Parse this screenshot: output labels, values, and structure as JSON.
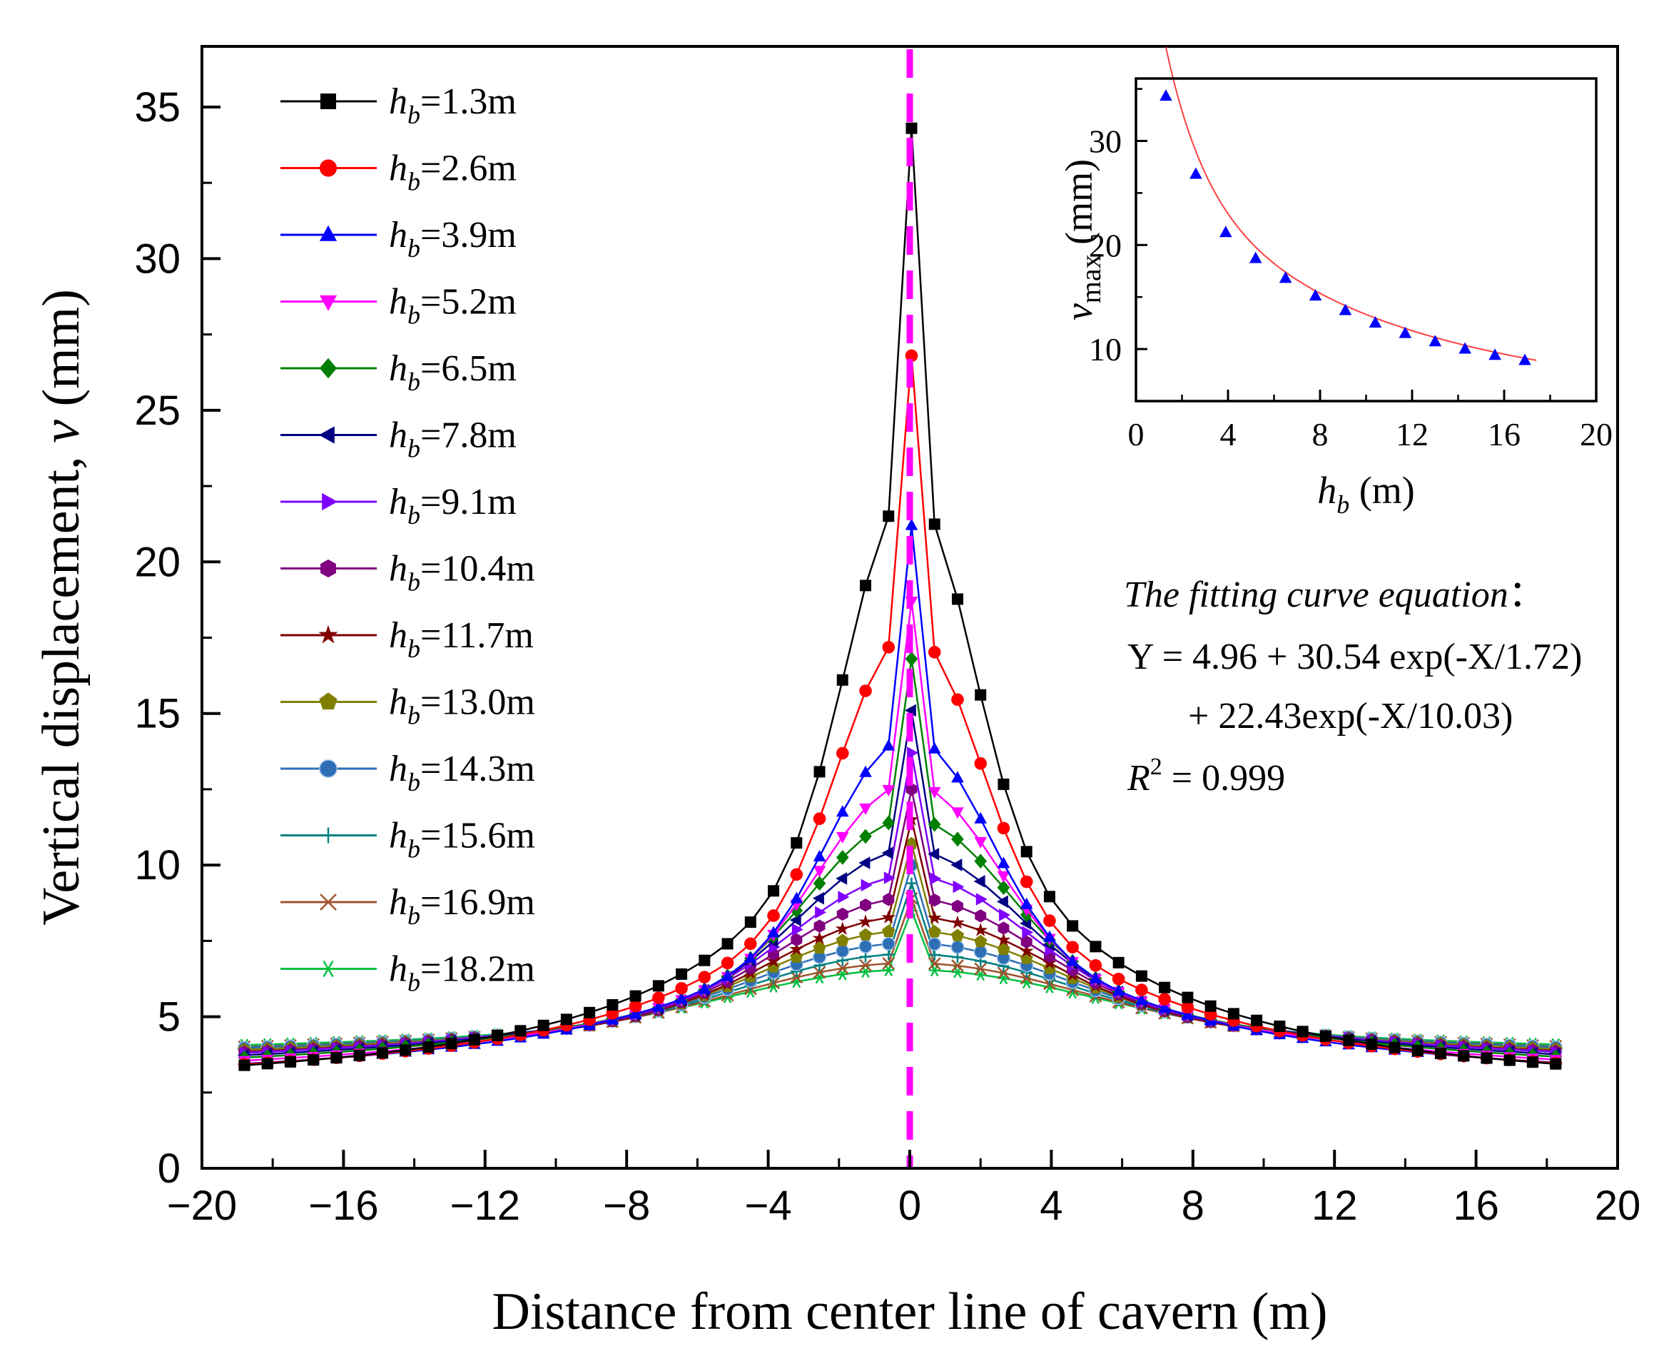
{
  "chart_data": [
    {
      "type": "line",
      "xlabel": "Distance from center line of cavern (m)",
      "ylabel_prefix": "Vertical displacement, ",
      "ylabel_var": "v",
      "ylabel_unit": " (mm)",
      "xlim": [
        -20,
        20
      ],
      "ylim": [
        0,
        37
      ],
      "xticks": [
        -20,
        -16,
        -12,
        -8,
        -4,
        0,
        4,
        8,
        12,
        16,
        20
      ],
      "xtick_labels": [
        "−20",
        "−16",
        "−12",
        "−8",
        "−4",
        "0",
        "4",
        "8",
        "12",
        "16",
        "20"
      ],
      "yticks": [
        0,
        5,
        10,
        15,
        20,
        25,
        30,
        35
      ],
      "ytick_labels": [
        "0",
        "5",
        "10",
        "15",
        "20",
        "25",
        "30",
        "35"
      ],
      "center_line_x": 0,
      "legend_position": "top-left",
      "series": [
        {
          "name": "h_b=1.3m",
          "var": "h",
          "sub": "b",
          "value_label": "=1.3m",
          "hb": 1.3,
          "color": "#000000",
          "marker": "square",
          "peak": 34.3,
          "far": 2.35,
          "half_width": 2.7
        },
        {
          "name": "h_b=2.6m",
          "var": "h",
          "sub": "b",
          "value_label": "=2.6m",
          "hb": 2.6,
          "color": "#ff0000",
          "marker": "circle",
          "peak": 26.8,
          "far": 2.5,
          "half_width": 3.0
        },
        {
          "name": "h_b=3.9m",
          "var": "h",
          "sub": "b",
          "value_label": "=3.9m",
          "hb": 3.9,
          "color": "#0000ff",
          "marker": "triangle-up",
          "peak": 21.2,
          "far": 2.6,
          "half_width": 3.4
        },
        {
          "name": "h_b=5.2m",
          "var": "h",
          "sub": "b",
          "value_label": "=5.2m",
          "hb": 5.2,
          "color": "#ff00ff",
          "marker": "triangle-down",
          "peak": 18.7,
          "far": 2.7,
          "half_width": 3.8
        },
        {
          "name": "h_b=6.5m",
          "var": "h",
          "sub": "b",
          "value_label": "=6.5m",
          "hb": 6.5,
          "color": "#008000",
          "marker": "diamond",
          "peak": 16.8,
          "far": 2.8,
          "half_width": 4.2
        },
        {
          "name": "h_b=7.8m",
          "var": "h",
          "sub": "b",
          "value_label": "=7.8m",
          "hb": 7.8,
          "color": "#000080",
          "marker": "triangle-left",
          "peak": 15.1,
          "far": 2.9,
          "half_width": 4.6
        },
        {
          "name": "h_b=9.1m",
          "var": "h",
          "sub": "b",
          "value_label": "=9.1m",
          "hb": 9.1,
          "color": "#8000ff",
          "marker": "triangle-right",
          "peak": 13.7,
          "far": 3.0,
          "half_width": 5.0
        },
        {
          "name": "h_b=10.4m",
          "var": "h",
          "sub": "b",
          "value_label": "=10.4m",
          "hb": 10.4,
          "color": "#800080",
          "marker": "hexagon",
          "peak": 12.5,
          "far": 3.05,
          "half_width": 5.4
        },
        {
          "name": "h_b=11.7m",
          "var": "h",
          "sub": "b",
          "value_label": "=11.7m",
          "hb": 11.7,
          "color": "#800000",
          "marker": "star",
          "peak": 11.5,
          "far": 3.1,
          "half_width": 5.8
        },
        {
          "name": "h_b=13.0m",
          "var": "h",
          "sub": "b",
          "value_label": "=13.0m",
          "hb": 13.0,
          "color": "#808000",
          "marker": "pentagon",
          "peak": 10.7,
          "far": 3.2,
          "half_width": 6.2
        },
        {
          "name": "h_b=14.3m",
          "var": "h",
          "sub": "b",
          "value_label": "=14.3m",
          "hb": 14.3,
          "color": "#2e6eb5",
          "marker": "sphere",
          "peak": 10.0,
          "far": 3.3,
          "half_width": 6.6
        },
        {
          "name": "h_b=15.6m",
          "var": "h",
          "sub": "b",
          "value_label": "=15.6m",
          "hb": 15.6,
          "color": "#008080",
          "marker": "plus",
          "peak": 9.4,
          "far": 3.35,
          "half_width": 7.0
        },
        {
          "name": "h_b=16.9m",
          "var": "h",
          "sub": "b",
          "value_label": "=16.9m",
          "hb": 16.9,
          "color": "#a0522d",
          "marker": "x",
          "peak": 8.9,
          "far": 3.4,
          "half_width": 7.4
        },
        {
          "name": "h_b=18.2m",
          "var": "h",
          "sub": "b",
          "value_label": "=18.2m",
          "hb": 18.2,
          "color": "#00c040",
          "marker": "asterisk",
          "peak": 8.5,
          "far": 3.5,
          "half_width": 7.8
        }
      ]
    },
    {
      "type": "scatter",
      "inset": true,
      "xlabel_var": "h",
      "xlabel_sub": "b",
      "xlabel_unit": " (m)",
      "ylabel_var": "v",
      "ylabel_sub": "max",
      "ylabel_unit": " (mm)",
      "xlim": [
        0,
        20
      ],
      "ylim": [
        5,
        36
      ],
      "xticks": [
        0,
        4,
        8,
        12,
        16,
        20
      ],
      "xtick_labels": [
        "0",
        "4",
        "8",
        "12",
        "16",
        "20"
      ],
      "yticks": [
        10,
        20,
        30
      ],
      "ytick_labels": [
        "10",
        "20",
        "30"
      ],
      "points": {
        "x": [
          1.3,
          2.6,
          3.9,
          5.2,
          6.5,
          7.8,
          9.1,
          10.4,
          11.7,
          13.0,
          14.3,
          15.6,
          16.9
        ],
        "y": [
          34.3,
          26.8,
          21.2,
          18.7,
          16.8,
          15.1,
          13.7,
          12.5,
          11.5,
          10.7,
          10.0,
          9.4,
          8.9
        ]
      },
      "point_color": "#0000ff",
      "fit_color": "#ff4040",
      "fit": {
        "y0": 4.96,
        "a1": 30.54,
        "t1": 1.72,
        "a2": 22.43,
        "t2": 10.03
      }
    }
  ],
  "equation": {
    "title": "The fitting curve equation",
    "title_colon": "：",
    "line1": "Y = 4.96 + 30.54 exp(-X/1.72)",
    "line2": "+ 22.43exp(-X/10.03)",
    "r2_var": "R",
    "r2_sup": "2",
    "r2_value": " = 0.999"
  }
}
